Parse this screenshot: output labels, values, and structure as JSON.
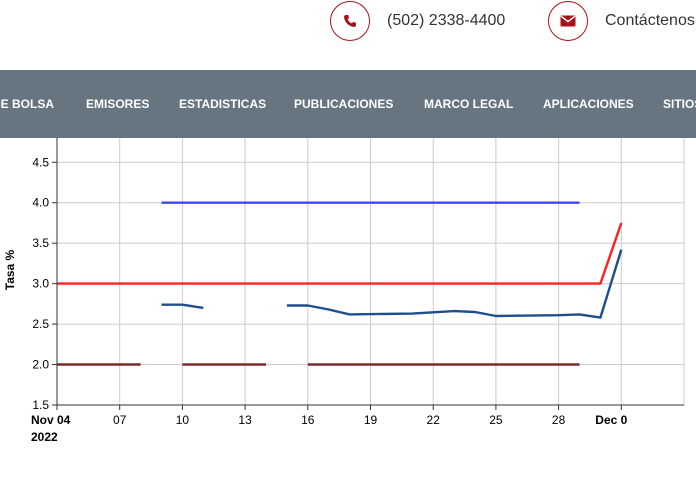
{
  "header": {
    "phone": {
      "icon": "phone-icon",
      "text": "(502) 2338-4400"
    },
    "contact": {
      "icon": "envelope-icon",
      "text": "Contáctenos"
    }
  },
  "nav": {
    "items": [
      {
        "label": "DE BOLSA"
      },
      {
        "label": "EMISORES"
      },
      {
        "label": "ESTADISTICAS"
      },
      {
        "label": "PUBLICACIONES"
      },
      {
        "label": "MARCO LEGAL"
      },
      {
        "label": "APLICACIONES"
      },
      {
        "label": "SITIOS"
      }
    ]
  },
  "colors": {
    "nav_bg": "#66757f",
    "accent": "#a5141a"
  },
  "chart_data": {
    "type": "line",
    "ylabel": "Tasa %",
    "ylim": [
      1.5,
      4.8
    ],
    "yticks": [
      1.5,
      2.0,
      2.5,
      3.0,
      3.5,
      4.0,
      4.5
    ],
    "xlim": [
      "2022-11-04",
      "2022-12-04"
    ],
    "xticks": [
      {
        "date": "2022-11-04",
        "label": "Nov 04",
        "sublabel": "2022",
        "bold": true
      },
      {
        "date": "2022-11-07",
        "label": "07"
      },
      {
        "date": "2022-11-10",
        "label": "10"
      },
      {
        "date": "2022-11-13",
        "label": "13"
      },
      {
        "date": "2022-11-16",
        "label": "16"
      },
      {
        "date": "2022-11-19",
        "label": "19"
      },
      {
        "date": "2022-11-22",
        "label": "22"
      },
      {
        "date": "2022-11-25",
        "label": "25"
      },
      {
        "date": "2022-11-28",
        "label": "28"
      },
      {
        "date": "2022-12-01",
        "label": "Dec 0",
        "bold": true
      }
    ],
    "grid": true,
    "series": [
      {
        "color": "#4444ee",
        "segments": [
          [
            [
              "2022-11-09",
              4.0
            ],
            [
              "2022-11-29",
              4.0
            ]
          ]
        ]
      },
      {
        "color": "#ff2020",
        "segments": [
          [
            [
              "2022-11-04",
              3.0
            ],
            [
              "2022-11-30",
              3.0
            ],
            [
              "2022-12-01",
              3.75
            ]
          ]
        ]
      },
      {
        "color": "#1f4e8c",
        "segments": [
          [
            [
              "2022-11-09",
              2.74
            ],
            [
              "2022-11-10",
              2.74
            ],
            [
              "2022-11-11",
              2.7
            ]
          ],
          [
            [
              "2022-11-15",
              2.73
            ],
            [
              "2022-11-16",
              2.73
            ],
            [
              "2022-11-17",
              2.68
            ],
            [
              "2022-11-18",
              2.62
            ],
            [
              "2022-11-21",
              2.63
            ],
            [
              "2022-11-23",
              2.66
            ],
            [
              "2022-11-24",
              2.65
            ],
            [
              "2022-11-25",
              2.6
            ],
            [
              "2022-11-28",
              2.61
            ],
            [
              "2022-11-29",
              2.62
            ],
            [
              "2022-11-30",
              2.58
            ],
            [
              "2022-12-01",
              3.42
            ]
          ]
        ]
      },
      {
        "color": "#7a2b2b",
        "segments": [
          [
            [
              "2022-11-04",
              2.0
            ],
            [
              "2022-11-08",
              2.0
            ]
          ],
          [
            [
              "2022-11-10",
              2.0
            ],
            [
              "2022-11-14",
              2.0
            ]
          ],
          [
            [
              "2022-11-16",
              2.0
            ],
            [
              "2022-11-29",
              2.0
            ]
          ]
        ]
      }
    ]
  }
}
